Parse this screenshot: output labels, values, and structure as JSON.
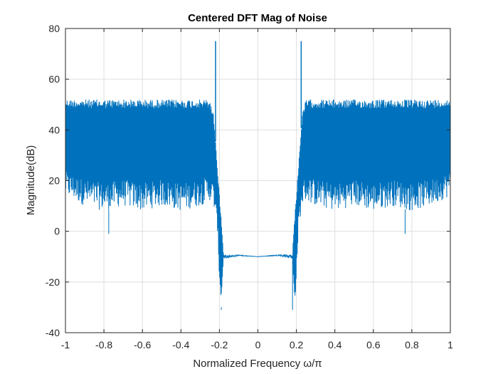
{
  "chart_data": {
    "type": "line",
    "title": "Centered DFT Mag of Noise",
    "xlabel": "Normalized Frequency ω/π",
    "ylabel": "Magnitude(dB)",
    "xlim": [
      -1,
      1
    ],
    "ylim": [
      -40,
      80
    ],
    "x_ticks": [
      -1,
      -0.8,
      -0.6,
      -0.4,
      -0.2,
      0,
      0.2,
      0.4,
      0.6,
      0.8,
      1
    ],
    "x_tick_labels": [
      "-1",
      "-0.8",
      "-0.6",
      "-0.4",
      "-0.2",
      "0",
      "0.2",
      "0.4",
      "0.6",
      "0.8",
      "1"
    ],
    "y_ticks": [
      -40,
      -20,
      0,
      20,
      40,
      60,
      80
    ],
    "y_tick_labels": [
      "-40",
      "-20",
      "0",
      "20",
      "40",
      "60",
      "80"
    ],
    "grid": true,
    "line_color": "#0072BD",
    "series": [
      {
        "description_of_shape": "noise spectrum envelope",
        "envelope": {
          "x": [
            -1.0,
            -0.9,
            -0.8,
            -0.7,
            -0.6,
            -0.5,
            -0.4,
            -0.3,
            -0.25,
            -0.23,
            -0.21,
            -0.2,
            -0.19,
            -0.18,
            -0.1,
            0.0,
            0.1,
            0.18,
            0.19,
            0.2,
            0.21,
            0.23,
            0.25,
            0.3,
            0.4,
            0.5,
            0.6,
            0.7,
            0.8,
            0.9,
            1.0
          ],
          "upper": [
            52,
            52,
            52,
            52,
            52,
            52,
            52,
            52,
            52,
            46,
            25,
            15,
            5,
            -8,
            -9,
            -10,
            -9,
            -8,
            5,
            15,
            25,
            46,
            52,
            52,
            52,
            52,
            52,
            52,
            52,
            52,
            52
          ],
          "lower": [
            14,
            10,
            8,
            10,
            8,
            10,
            8,
            10,
            12,
            10,
            0,
            -20,
            -30,
            -12,
            -10,
            -10,
            -10,
            -12,
            -30,
            -20,
            0,
            10,
            12,
            10,
            8,
            10,
            8,
            10,
            8,
            10,
            14
          ]
        },
        "peaks": [
          {
            "x": -0.22,
            "y": 75
          },
          {
            "x": 0.225,
            "y": 75
          }
        ],
        "min_outliers": [
          {
            "x": -0.775,
            "y": -1
          },
          {
            "x": 0.765,
            "y": -1
          },
          {
            "x": -0.19,
            "y": -31
          },
          {
            "x": 0.18,
            "y": -31
          }
        ]
      }
    ]
  }
}
